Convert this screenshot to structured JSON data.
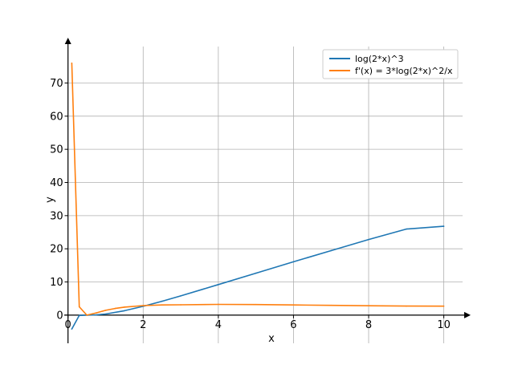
{
  "chart_data": {
    "type": "line",
    "xlabel": "x",
    "ylabel": "y",
    "xlim": [
      -0.1,
      10.5
    ],
    "ylim": [
      -8.5,
      81
    ],
    "xticks": [
      0,
      2,
      4,
      6,
      8,
      10
    ],
    "yticks": [
      0,
      10,
      20,
      30,
      40,
      50,
      60,
      70
    ],
    "grid": true,
    "legend_position": "top-right",
    "colors": {
      "series_1": "#1f77b4",
      "series_2": "#ff7f0e",
      "grid": "#b0b0b0",
      "axis": "#000000"
    },
    "series": [
      {
        "name": "log(2*x)^3",
        "x": [
          0.1,
          0.3,
          0.5,
          0.75,
          1,
          1.5,
          2,
          2.5,
          3,
          4,
          5,
          6,
          7,
          8,
          9,
          10
        ],
        "y": [
          -4.2,
          -0.1,
          0,
          0.07,
          0.33,
          1.32,
          2.66,
          4.18,
          5.8,
          9.2,
          12.64,
          16.08,
          19.45,
          22.81,
          25.94,
          26.8
        ]
      },
      {
        "name": "f'(x) = 3*log(2*x)^2/x",
        "x": [
          0.1,
          0.3,
          0.5,
          0.75,
          1,
          1.25,
          1.5,
          2,
          2.5,
          3,
          4,
          5,
          6,
          7,
          8,
          9,
          10
        ],
        "y": [
          76,
          2.5,
          0,
          0.67,
          1.44,
          2.0,
          2.41,
          2.88,
          3.06,
          3.11,
          3.24,
          3.18,
          3.07,
          2.95,
          2.83,
          2.72,
          2.7
        ]
      }
    ]
  }
}
